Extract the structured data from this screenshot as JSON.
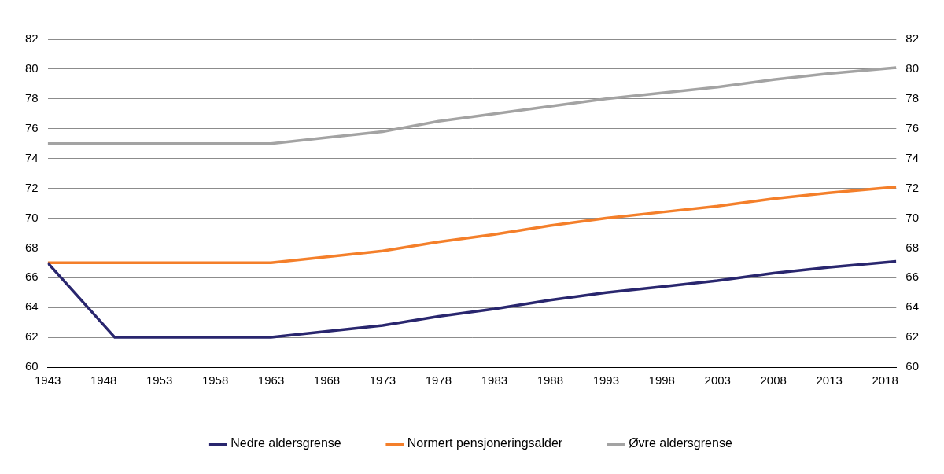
{
  "chart_data": {
    "type": "line",
    "x": [
      1943,
      1949,
      1963,
      1968,
      1973,
      1978,
      1983,
      1988,
      1993,
      1998,
      2003,
      2008,
      2013,
      2019
    ],
    "series": [
      {
        "name": "Nedre aldersgrense",
        "color": "#29266e",
        "marker": "none",
        "line_style": "solid",
        "values": [
          67,
          62,
          62,
          62.4,
          62.8,
          63.4,
          63.9,
          64.5,
          65.0,
          65.4,
          65.8,
          66.3,
          66.7,
          67.1
        ]
      },
      {
        "name": "Normert pensjoneringsalder",
        "color": "#f47f2a",
        "marker": "none",
        "line_style": "solid",
        "values": [
          67,
          67,
          67,
          67.4,
          67.8,
          68.4,
          68.9,
          69.5,
          70.0,
          70.4,
          70.8,
          71.3,
          71.7,
          72.1
        ]
      },
      {
        "name": "Øvre aldersgrense",
        "color": "#a3a3a3",
        "marker": "none",
        "line_style": "solid",
        "values": [
          75,
          75,
          75,
          75.4,
          75.8,
          76.5,
          77.0,
          77.5,
          78.0,
          78.4,
          78.8,
          79.3,
          79.7,
          80.1
        ]
      }
    ],
    "xlim": [
      1943,
      2019
    ],
    "xticks": [
      1943,
      1948,
      1953,
      1958,
      1963,
      1968,
      1973,
      1978,
      1983,
      1988,
      1993,
      1998,
      2003,
      2008,
      2013,
      2018
    ],
    "ylim": [
      60,
      82
    ],
    "yticks": [
      60,
      62,
      64,
      66,
      68,
      70,
      72,
      74,
      76,
      78,
      80,
      82
    ],
    "y2lim": [
      60,
      82
    ],
    "y2ticks": [
      60,
      62,
      64,
      66,
      68,
      70,
      72,
      74,
      76,
      78,
      80,
      82
    ],
    "grid": true,
    "legend": "bottom"
  }
}
